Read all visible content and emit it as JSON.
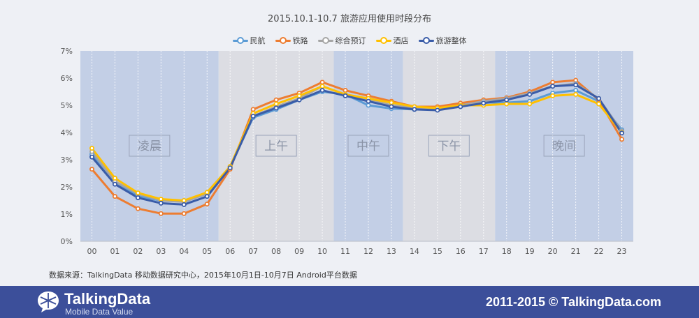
{
  "chart_data": {
    "type": "line",
    "title": "2015.10.1-10.7 旅游应用使用时段分布",
    "categories": [
      "00",
      "01",
      "02",
      "03",
      "04",
      "05",
      "06",
      "07",
      "08",
      "09",
      "10",
      "11",
      "12",
      "13",
      "14",
      "15",
      "16",
      "17",
      "18",
      "19",
      "20",
      "21",
      "22",
      "23"
    ],
    "y_tick_labels": [
      "0%",
      "1%",
      "2%",
      "3%",
      "4%",
      "5%",
      "6%",
      "7%"
    ],
    "ylim": [
      0,
      7
    ],
    "y_unit": "%",
    "periods": [
      {
        "label": "凌晨",
        "from_hour": "00",
        "to_hour": "05",
        "color": "#c3cfe6"
      },
      {
        "label": "上午",
        "from_hour": "06",
        "to_hour": "10",
        "color": "#dcdde3"
      },
      {
        "label": "中午",
        "from_hour": "11",
        "to_hour": "13",
        "color": "#c3cfe6"
      },
      {
        "label": "下午",
        "from_hour": "14",
        "to_hour": "17",
        "color": "#dcdde3"
      },
      {
        "label": "晚间",
        "from_hour": "18",
        "to_hour": "23",
        "color": "#c3cfe6"
      }
    ],
    "series": [
      {
        "name": "民航",
        "color": "#5b9bd5",
        "values": [
          3.2,
          2.2,
          1.65,
          1.5,
          1.5,
          1.75,
          2.75,
          4.55,
          4.85,
          5.2,
          5.5,
          5.4,
          5.0,
          4.88,
          4.85,
          4.85,
          4.95,
          5.1,
          5.1,
          5.15,
          5.45,
          5.55,
          5.15,
          4.1
        ]
      },
      {
        "name": "铁路",
        "color": "#ed7d31",
        "values": [
          2.65,
          1.65,
          1.2,
          1.02,
          1.02,
          1.37,
          2.65,
          4.85,
          5.2,
          5.45,
          5.85,
          5.55,
          5.35,
          5.15,
          4.95,
          4.95,
          5.08,
          5.2,
          5.28,
          5.5,
          5.85,
          5.92,
          5.2,
          3.75
        ]
      },
      {
        "name": "综合预订",
        "color": "#a5a5a5",
        "values": [
          3.3,
          2.2,
          1.75,
          1.5,
          1.45,
          1.75,
          2.75,
          4.6,
          4.95,
          5.25,
          5.7,
          5.4,
          5.2,
          5.0,
          4.9,
          4.85,
          5.0,
          5.15,
          5.25,
          5.45,
          5.7,
          5.8,
          5.25,
          4.05
        ]
      },
      {
        "name": "酒店",
        "color": "#ffc000",
        "values": [
          3.42,
          2.32,
          1.78,
          1.55,
          1.5,
          1.8,
          2.75,
          4.7,
          5.05,
          5.35,
          5.7,
          5.4,
          5.25,
          5.1,
          4.95,
          4.9,
          5.0,
          5.0,
          5.05,
          5.05,
          5.35,
          5.4,
          5.05,
          4.0
        ]
      },
      {
        "name": "旅游整体",
        "color": "#3a5ca8",
        "values": [
          3.1,
          2.1,
          1.6,
          1.4,
          1.35,
          1.65,
          2.7,
          4.6,
          4.9,
          5.2,
          5.55,
          5.35,
          5.15,
          4.95,
          4.85,
          4.82,
          4.95,
          5.08,
          5.2,
          5.4,
          5.7,
          5.75,
          5.25,
          3.98
        ]
      }
    ],
    "grid": false,
    "legend_position": "top-center"
  },
  "source_note": "数据来源：TalkingData 移动数据研究中心，2015年10月1日-10月7日 Android平台数据",
  "footer": {
    "brand_name": "TalkingData",
    "brand_tagline": "Mobile Data Value",
    "copyright": "2011-2015 © TalkingData.com",
    "logo_icon": "speech-bubble-icon",
    "background_color": "#3c4f9a"
  }
}
